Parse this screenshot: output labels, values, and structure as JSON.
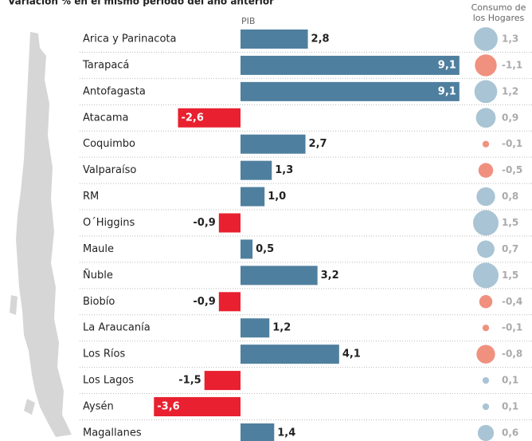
{
  "chart_data": {
    "type": "bar",
    "subtitle": "Variación % en el mismo período del año anterior",
    "pib_label": "PIB",
    "consumo_label": [
      "Consumo de",
      "los Hogares"
    ],
    "categories": [
      "Arica y Parinacota",
      "Tarapacá",
      "Antofagasta",
      "Atacama",
      "Coquimbo",
      "Valparaíso",
      "RM",
      "O´Higgins",
      "Maule",
      "Ñuble",
      "Biobío",
      "La Araucanía",
      "Los Ríos",
      "Los Lagos",
      "Aysén",
      "Magallanes"
    ],
    "series": [
      {
        "name": "PIB",
        "colors": {
          "positive": "#4f7f9e",
          "negative": "#e8202f"
        },
        "values": [
          2.8,
          9.1,
          9.1,
          -2.6,
          2.7,
          1.3,
          1.0,
          -0.9,
          0.5,
          3.2,
          -0.9,
          1.2,
          4.1,
          -1.5,
          -3.6,
          1.4
        ],
        "value_labels": [
          "2,8",
          "9,1",
          "9,1",
          "-2,6",
          "2,7",
          "1,3",
          "1,0",
          "-0,9",
          "0,5",
          "3,2",
          "-0,9",
          "1,2",
          "4,1",
          "-1,5",
          "-3,6",
          "1,4"
        ]
      },
      {
        "name": "Consumo de los Hogares",
        "colors": {
          "positive": "#a9c4d4",
          "negative": "#f0917f"
        },
        "values": [
          1.3,
          -1.1,
          1.2,
          0.9,
          -0.1,
          -0.5,
          0.8,
          1.5,
          0.7,
          1.5,
          -0.4,
          -0.1,
          -0.8,
          0.1,
          0.1,
          0.6
        ],
        "value_labels": [
          "1,3",
          "-1,1",
          "1,2",
          "0,9",
          "-0,1",
          "-0,5",
          "0,8",
          "1,5",
          "0,7",
          "1,5",
          "-0,4",
          "-0,1",
          "-0,8",
          "0,1",
          "0,1",
          "0,6"
        ]
      }
    ]
  }
}
